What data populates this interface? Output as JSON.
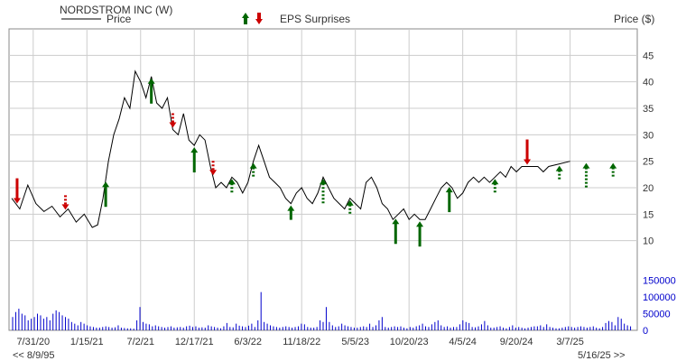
{
  "chart_data": {
    "type": "line",
    "title": "NORDSTROM INC (W)",
    "legend_label": "Price",
    "eps_label": "EPS Surprises",
    "y_label_right": "Price ($)",
    "price_ticks": [
      10,
      15,
      20,
      25,
      30,
      35,
      40,
      45
    ],
    "price_range": [
      5,
      50
    ],
    "volume_ticks": [
      0,
      50000,
      100000,
      150000
    ],
    "volume_range": [
      0,
      190000
    ],
    "x_ticks": [
      "7/31/20",
      "1/15/21",
      "7/2/21",
      "12/17/21",
      "6/3/22",
      "11/18/22",
      "5/5/23",
      "10/20/23",
      "4/5/24",
      "9/20/24",
      "3/7/25"
    ],
    "range_start": "<< 8/9/95",
    "range_end": "5/16/25 >>",
    "colors": {
      "price_line": "#000000",
      "up_arrow": "#006600",
      "down_arrow": "#cc0000",
      "volume": "#0000cc",
      "grid": "#cccccc",
      "axis_text": "#333333",
      "volume_text": "#0000cc"
    },
    "price_series": [
      [
        0,
        18
      ],
      [
        0.15,
        16
      ],
      [
        0.3,
        20.5
      ],
      [
        0.45,
        17
      ],
      [
        0.6,
        15.5
      ],
      [
        0.75,
        16.5
      ],
      [
        0.9,
        14.5
      ],
      [
        1.05,
        16
      ],
      [
        1.2,
        13.5
      ],
      [
        1.35,
        15
      ],
      [
        1.5,
        12.5
      ],
      [
        1.6,
        13
      ],
      [
        1.7,
        18
      ],
      [
        1.8,
        25
      ],
      [
        1.9,
        30
      ],
      [
        2.0,
        33
      ],
      [
        2.1,
        37
      ],
      [
        2.2,
        35
      ],
      [
        2.3,
        42
      ],
      [
        2.4,
        40
      ],
      [
        2.5,
        37
      ],
      [
        2.6,
        41
      ],
      [
        2.7,
        36
      ],
      [
        2.8,
        35
      ],
      [
        2.9,
        37
      ],
      [
        3.0,
        31
      ],
      [
        3.1,
        30
      ],
      [
        3.2,
        34
      ],
      [
        3.3,
        29
      ],
      [
        3.4,
        28
      ],
      [
        3.5,
        30
      ],
      [
        3.6,
        29
      ],
      [
        3.7,
        24
      ],
      [
        3.8,
        20
      ],
      [
        3.9,
        21
      ],
      [
        4.0,
        20
      ],
      [
        4.1,
        22
      ],
      [
        4.2,
        21
      ],
      [
        4.3,
        19
      ],
      [
        4.4,
        21
      ],
      [
        4.5,
        25
      ],
      [
        4.6,
        28
      ],
      [
        4.7,
        25
      ],
      [
        4.8,
        22
      ],
      [
        4.9,
        21
      ],
      [
        5.0,
        20
      ],
      [
        5.1,
        18
      ],
      [
        5.2,
        17
      ],
      [
        5.3,
        19
      ],
      [
        5.4,
        20
      ],
      [
        5.5,
        18
      ],
      [
        5.6,
        17
      ],
      [
        5.7,
        19
      ],
      [
        5.8,
        22
      ],
      [
        5.9,
        20
      ],
      [
        6.0,
        18
      ],
      [
        6.1,
        17
      ],
      [
        6.2,
        16
      ],
      [
        6.3,
        18
      ],
      [
        6.4,
        17
      ],
      [
        6.5,
        16
      ],
      [
        6.6,
        21
      ],
      [
        6.7,
        22
      ],
      [
        6.8,
        20
      ],
      [
        6.9,
        17
      ],
      [
        7.0,
        16
      ],
      [
        7.1,
        14
      ],
      [
        7.2,
        15
      ],
      [
        7.3,
        16
      ],
      [
        7.4,
        14
      ],
      [
        7.5,
        15
      ],
      [
        7.6,
        14
      ],
      [
        7.7,
        14
      ],
      [
        7.8,
        16
      ],
      [
        7.9,
        18
      ],
      [
        8.0,
        20
      ],
      [
        8.1,
        21
      ],
      [
        8.2,
        20
      ],
      [
        8.3,
        18
      ],
      [
        8.4,
        19
      ],
      [
        8.5,
        21
      ],
      [
        8.6,
        22
      ],
      [
        8.7,
        21
      ],
      [
        8.8,
        22
      ],
      [
        8.9,
        21
      ],
      [
        9.0,
        22
      ],
      [
        9.1,
        23
      ],
      [
        9.2,
        22
      ],
      [
        9.3,
        24
      ],
      [
        9.4,
        23
      ],
      [
        9.5,
        24
      ],
      [
        9.6,
        24
      ],
      [
        9.7,
        24
      ],
      [
        9.8,
        24
      ],
      [
        9.9,
        23
      ],
      [
        10.0,
        24
      ],
      [
        10.2,
        24.5
      ],
      [
        10.4,
        25
      ]
    ],
    "eps_surprises": [
      {
        "x": 0.1,
        "dir": "down",
        "style": "solid",
        "size": "large"
      },
      {
        "x": 1.0,
        "dir": "down",
        "style": "dotted",
        "size": "small"
      },
      {
        "x": 1.75,
        "dir": "up",
        "style": "solid",
        "size": "large"
      },
      {
        "x": 2.6,
        "dir": "up",
        "style": "solid",
        "size": "large"
      },
      {
        "x": 3.0,
        "dir": "down",
        "style": "dotted",
        "size": "small"
      },
      {
        "x": 3.4,
        "dir": "up",
        "style": "solid",
        "size": "large"
      },
      {
        "x": 3.75,
        "dir": "down",
        "style": "dotted",
        "size": "small"
      },
      {
        "x": 4.1,
        "dir": "up",
        "style": "dotted",
        "size": "small"
      },
      {
        "x": 4.5,
        "dir": "up",
        "style": "dotted",
        "size": "small"
      },
      {
        "x": 5.2,
        "dir": "up",
        "style": "solid",
        "size": "small"
      },
      {
        "x": 5.8,
        "dir": "up",
        "style": "dotted",
        "size": "large"
      },
      {
        "x": 6.3,
        "dir": "up",
        "style": "dotted",
        "size": "small"
      },
      {
        "x": 7.15,
        "dir": "up",
        "style": "solid",
        "size": "large"
      },
      {
        "x": 7.6,
        "dir": "up",
        "style": "solid",
        "size": "large"
      },
      {
        "x": 8.15,
        "dir": "up",
        "style": "solid",
        "size": "large"
      },
      {
        "x": 9.0,
        "dir": "up",
        "style": "dotted",
        "size": "small"
      },
      {
        "x": 9.6,
        "dir": "down",
        "style": "solid",
        "size": "large"
      },
      {
        "x": 10.2,
        "dir": "up",
        "style": "dotted",
        "size": "small"
      },
      {
        "x": 10.7,
        "dir": "up",
        "style": "dotted",
        "size": "large"
      },
      {
        "x": 11.2,
        "dir": "up",
        "style": "dotted",
        "size": "small"
      }
    ],
    "volume": [
      40000,
      55000,
      65000,
      50000,
      45000,
      30000,
      35000,
      40000,
      50000,
      45000,
      35000,
      40000,
      30000,
      50000,
      60000,
      55000,
      45000,
      40000,
      35000,
      25000,
      20000,
      15000,
      25000,
      20000,
      15000,
      12000,
      10000,
      8000,
      8000,
      10000,
      12000,
      10000,
      8000,
      9000,
      15000,
      8000,
      7000,
      6000,
      6000,
      5000,
      30000,
      70000,
      25000,
      20000,
      18000,
      12000,
      15000,
      12000,
      10000,
      8000,
      10000,
      12000,
      8000,
      9000,
      10000,
      8000,
      12000,
      14000,
      10000,
      12000,
      8000,
      9000,
      8000,
      15000,
      12000,
      10000,
      8000,
      6000,
      12000,
      22000,
      10000,
      9000,
      20000,
      14000,
      12000,
      10000,
      14000,
      20000,
      10000,
      30000,
      115000,
      25000,
      20000,
      15000,
      12000,
      10000,
      8000,
      10000,
      12000,
      10000,
      8000,
      10000,
      12000,
      20000,
      18000,
      10000,
      8000,
      8000,
      10000,
      30000,
      25000,
      70000,
      25000,
      15000,
      10000,
      12000,
      20000,
      15000,
      12000,
      10000,
      8000,
      8000,
      10000,
      12000,
      10000,
      20000,
      10000,
      15000,
      30000,
      40000,
      10000,
      8000,
      10000,
      12000,
      10000,
      12000,
      8000,
      6000,
      10000,
      8000,
      12000,
      15000,
      20000,
      12000,
      10000,
      18000,
      25000,
      30000,
      15000,
      10000,
      12000,
      8000,
      10000,
      10000,
      18000,
      30000,
      25000,
      22000,
      10000,
      9000,
      12000,
      18000,
      28000,
      15000,
      8000,
      8000,
      10000,
      12000,
      8000,
      6000,
      10000,
      15000,
      8000,
      10000,
      8000,
      6000,
      8000,
      10000,
      12000,
      12000,
      15000,
      10000,
      18000,
      10000,
      8000,
      6000,
      6000,
      8000,
      10000,
      12000,
      10000,
      8000,
      10000,
      12000,
      10000,
      8000,
      10000,
      12000,
      8000,
      6000,
      10000,
      22000,
      28000,
      25000,
      15000,
      40000,
      35000,
      20000,
      15000,
      12000
    ]
  }
}
